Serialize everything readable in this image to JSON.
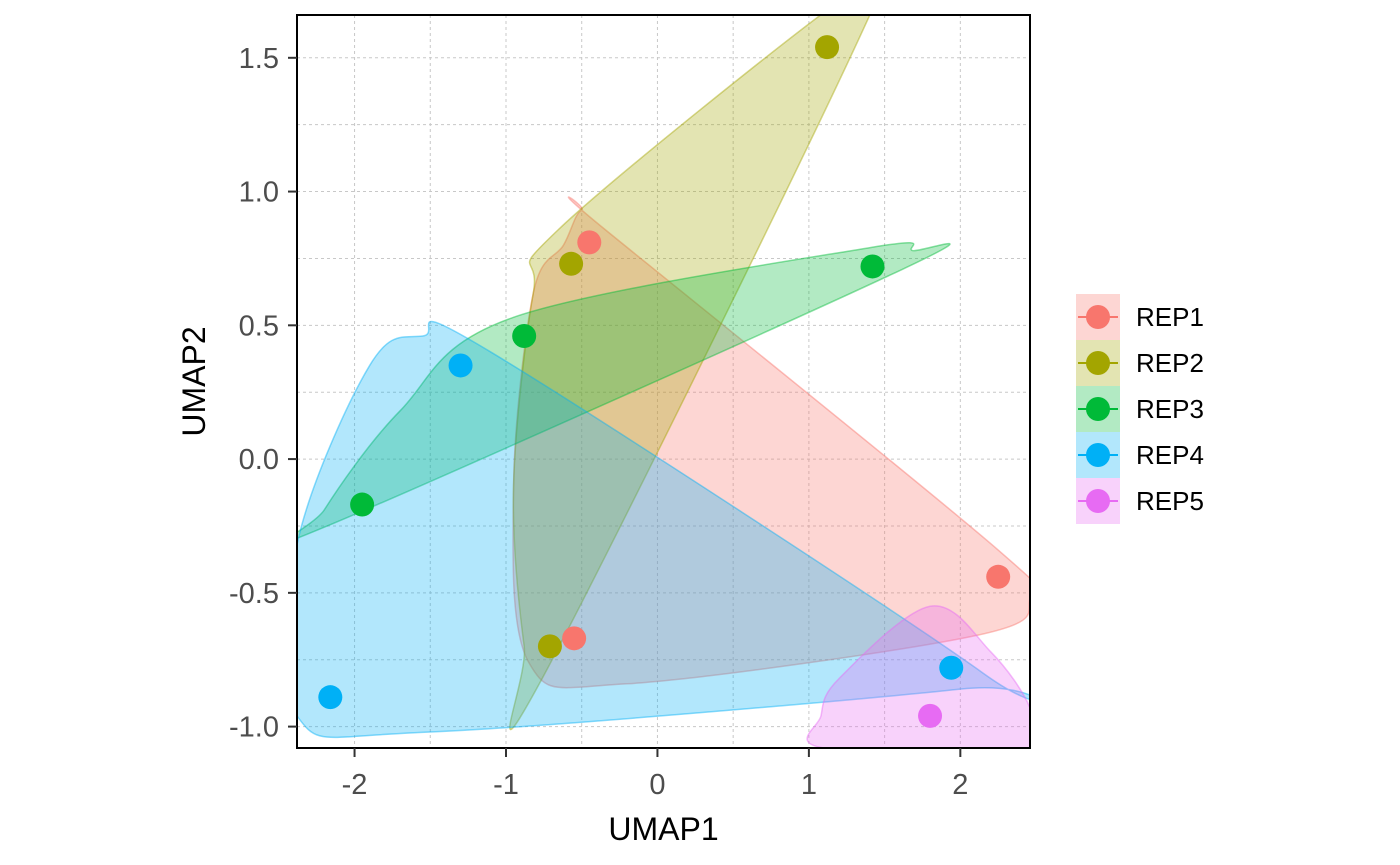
{
  "chart_data": {
    "type": "scatter",
    "xlabel": "UMAP1",
    "ylabel": "UMAP2",
    "xlim": [
      -2.38,
      2.46
    ],
    "ylim": [
      -1.08,
      1.66
    ],
    "x_ticks": [
      -2,
      -1,
      0,
      1,
      2
    ],
    "x_tick_labels": [
      "-2",
      "-1",
      "0",
      "1",
      "2"
    ],
    "y_ticks": [
      -1.0,
      -0.5,
      0.0,
      0.5,
      1.0,
      1.5
    ],
    "y_tick_labels": [
      "-1.0",
      "-0.5",
      "0.0",
      "0.5",
      "1.0",
      "1.5"
    ],
    "grid": true,
    "legend_position": "right",
    "series": [
      {
        "name": "REP1",
        "color": "#F8766D",
        "points": [
          [
            -0.45,
            0.81
          ],
          [
            2.25,
            -0.44
          ],
          [
            -0.55,
            -0.67
          ]
        ],
        "hull": [
          [
            -0.62,
            0.8
          ],
          [
            -0.5,
            0.93
          ],
          [
            -0.35,
            0.86
          ],
          [
            2.25,
            -0.34
          ],
          [
            2.46,
            -0.52
          ],
          [
            2.1,
            -0.66
          ],
          [
            -0.2,
            -0.84
          ],
          [
            -0.85,
            -0.76
          ],
          [
            -0.95,
            -0.1
          ],
          [
            -0.82,
            0.62
          ]
        ]
      },
      {
        "name": "REP2",
        "color": "#A3A500",
        "points": [
          [
            1.12,
            1.54
          ],
          [
            -0.57,
            0.73
          ],
          [
            -0.71,
            -0.7
          ]
        ],
        "hull": [
          [
            1.22,
            1.72
          ],
          [
            1.45,
            1.72
          ],
          [
            -0.78,
            -0.84
          ],
          [
            -0.88,
            -0.7
          ],
          [
            -0.95,
            -0.1
          ],
          [
            -0.82,
            0.62
          ],
          [
            -0.65,
            0.86
          ]
        ]
      },
      {
        "name": "REP3",
        "color": "#00BA38",
        "points": [
          [
            1.42,
            0.72
          ],
          [
            -0.88,
            0.46
          ],
          [
            -1.95,
            -0.17
          ]
        ],
        "hull": [
          [
            1.4,
            0.79
          ],
          [
            1.68,
            0.78
          ],
          [
            1.62,
            0.71
          ],
          [
            -2.18,
            -0.25
          ],
          [
            -2.2,
            -0.19
          ],
          [
            -1.7,
            0.18
          ],
          [
            -0.95,
            0.53
          ]
        ]
      },
      {
        "name": "REP4",
        "color": "#00B0F6",
        "points": [
          [
            -1.3,
            0.35
          ],
          [
            -2.16,
            -0.89
          ],
          [
            1.94,
            -0.78
          ]
        ],
        "hull": [
          [
            -1.55,
            0.46
          ],
          [
            -1.1,
            0.4
          ],
          [
            2.15,
            -0.8
          ],
          [
            2.0,
            -0.86
          ],
          [
            -1.5,
            -1.02
          ],
          [
            -2.38,
            -0.96
          ],
          [
            -2.38,
            -0.32
          ],
          [
            -1.9,
            0.35
          ]
        ]
      },
      {
        "name": "REP5",
        "color": "#E76BF3",
        "points": [
          [
            1.8,
            -0.96
          ]
        ],
        "hull": [
          [
            1.8,
            -0.55
          ],
          [
            2.2,
            -0.72
          ],
          [
            2.46,
            -0.93
          ],
          [
            2.46,
            -1.08
          ],
          [
            1.1,
            -1.08
          ],
          [
            1.08,
            -0.96
          ],
          [
            1.2,
            -0.82
          ]
        ]
      }
    ]
  }
}
